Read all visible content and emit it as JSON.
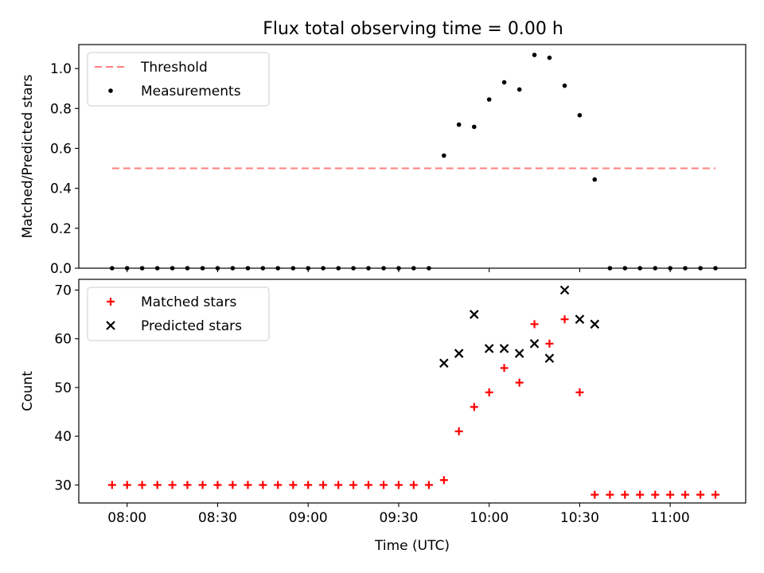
{
  "figure": {
    "title": "Flux total observing time = 0.00 h"
  },
  "chart_data": [
    {
      "type": "scatter",
      "ylabel": "Matched/Predicted stars",
      "ylim": [
        0,
        1.12
      ],
      "yticks": [
        0.0,
        0.2,
        0.4,
        0.6,
        0.8,
        1.0
      ],
      "ytick_labels": [
        "0.0",
        "0.2",
        "0.4",
        "0.6",
        "0.8",
        "1.0"
      ],
      "xlim": [
        -0.267,
        3.417
      ],
      "xticks": [
        0,
        0.5,
        1,
        1.5,
        2,
        2.5,
        3
      ],
      "grid": false,
      "legend": "top-left",
      "threshold": {
        "name": "Threshold",
        "value": 0.5,
        "x_range": [
          -0.083,
          3.25
        ],
        "color": "#ff7f7f"
      },
      "series": [
        {
          "name": "Measurements",
          "color": "#000000",
          "x": [
            -0.083,
            0.0,
            0.083,
            0.167,
            0.25,
            0.333,
            0.417,
            0.5,
            0.583,
            0.667,
            0.75,
            0.833,
            0.917,
            1.0,
            1.083,
            1.167,
            1.25,
            1.333,
            1.417,
            1.5,
            1.583,
            1.667,
            1.75,
            1.833,
            1.917,
            2.0,
            2.083,
            2.167,
            2.25,
            2.333,
            2.417,
            2.5,
            2.583,
            2.667,
            2.75,
            2.833,
            2.917,
            3.0,
            3.083,
            3.167,
            3.25
          ],
          "y": [
            0,
            0,
            0,
            0,
            0,
            0,
            0,
            0,
            0,
            0,
            0,
            0,
            0,
            0,
            0,
            0,
            0,
            0,
            0,
            0,
            0,
            0,
            0.564,
            0.719,
            0.708,
            0.845,
            0.931,
            0.895,
            1.068,
            1.054,
            0.914,
            0.766,
            0.444,
            0,
            0,
            0,
            0,
            0,
            0,
            0,
            0
          ]
        }
      ]
    },
    {
      "type": "scatter",
      "xlabel": "Time (UTC)",
      "ylabel": "Count",
      "ylim": [
        26.3,
        72.2
      ],
      "yticks": [
        30,
        40,
        50,
        60,
        70
      ],
      "ytick_labels": [
        "30",
        "40",
        "50",
        "60",
        "70"
      ],
      "xlim": [
        -0.267,
        3.417
      ],
      "xticks": [
        0,
        0.5,
        1,
        1.5,
        2,
        2.5,
        3
      ],
      "xtick_labels": [
        "08:00",
        "08:30",
        "09:00",
        "09:30",
        "10:00",
        "10:30",
        "11:00"
      ],
      "grid": false,
      "legend": "top-left",
      "series": [
        {
          "name": "Matched stars",
          "marker": "plus",
          "color": "#ff0000",
          "x": [
            -0.083,
            0.0,
            0.083,
            0.167,
            0.25,
            0.333,
            0.417,
            0.5,
            0.583,
            0.667,
            0.75,
            0.833,
            0.917,
            1.0,
            1.083,
            1.167,
            1.25,
            1.333,
            1.417,
            1.5,
            1.583,
            1.667,
            1.75,
            1.833,
            1.917,
            2.0,
            2.083,
            2.167,
            2.25,
            2.333,
            2.417,
            2.5,
            2.583,
            2.667,
            2.75,
            2.833,
            2.917,
            3.0,
            3.083,
            3.167,
            3.25
          ],
          "y": [
            30,
            30,
            30,
            30,
            30,
            30,
            30,
            30,
            30,
            30,
            30,
            30,
            30,
            30,
            30,
            30,
            30,
            30,
            30,
            30,
            30,
            30,
            31,
            41,
            46,
            49,
            54,
            51,
            63,
            59,
            64,
            49,
            28,
            28,
            28,
            28,
            28,
            28,
            28,
            28,
            28
          ]
        },
        {
          "name": "Predicted stars",
          "marker": "x",
          "color": "#000000",
          "x": [
            1.75,
            1.833,
            1.917,
            2.0,
            2.083,
            2.167,
            2.25,
            2.333,
            2.417,
            2.5,
            2.583
          ],
          "y": [
            55,
            57,
            65,
            58,
            58,
            57,
            59,
            56,
            70,
            64,
            63
          ]
        }
      ]
    }
  ]
}
